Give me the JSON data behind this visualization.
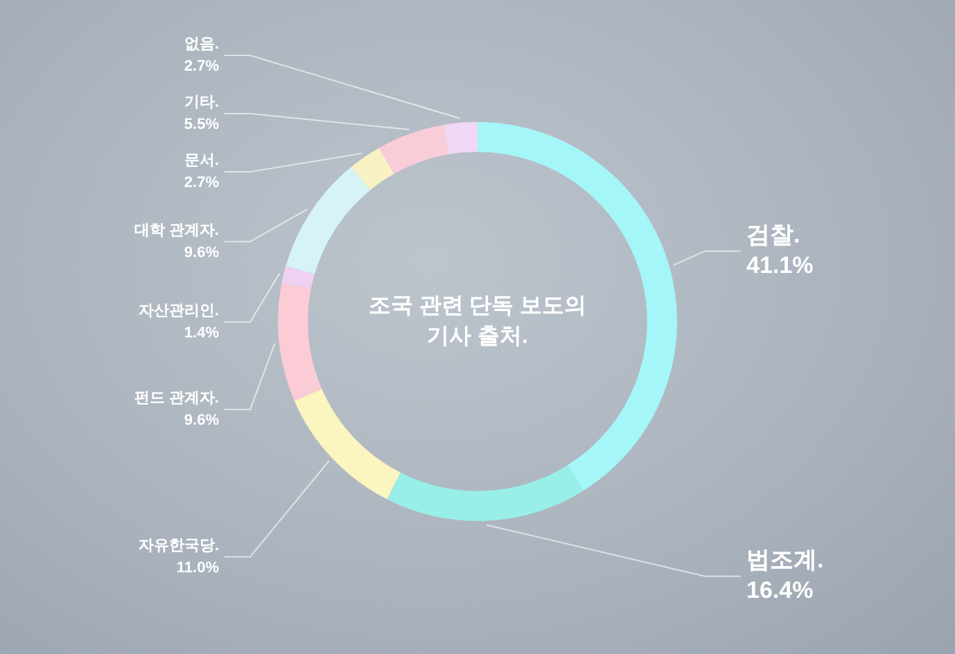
{
  "chart_data": {
    "type": "donut",
    "title": "조국 관련 단독 보도의 기사 출처.",
    "categories": [
      "검찰.",
      "법조계.",
      "자유한국당.",
      "펀드 관계자.",
      "자산관리인.",
      "대학 관계자.",
      "문서.",
      "기타.",
      "없음."
    ],
    "values": [
      41.1,
      16.4,
      11.0,
      9.6,
      1.4,
      9.6,
      2.7,
      5.5,
      2.7
    ],
    "value_labels": [
      "41.1%",
      "16.4%",
      "11.0%",
      "9.6%",
      "1.4%",
      "9.6%",
      "2.7%",
      "5.5%",
      "2.7%"
    ],
    "colors": [
      "#a4f6f8",
      "#98efe8",
      "#fbf5c0",
      "#fbcbd6",
      "#efd2f2",
      "#d6f4f8",
      "#f8f2c4",
      "#f9cdd8",
      "#efd8f4"
    ],
    "legend": false
  }
}
